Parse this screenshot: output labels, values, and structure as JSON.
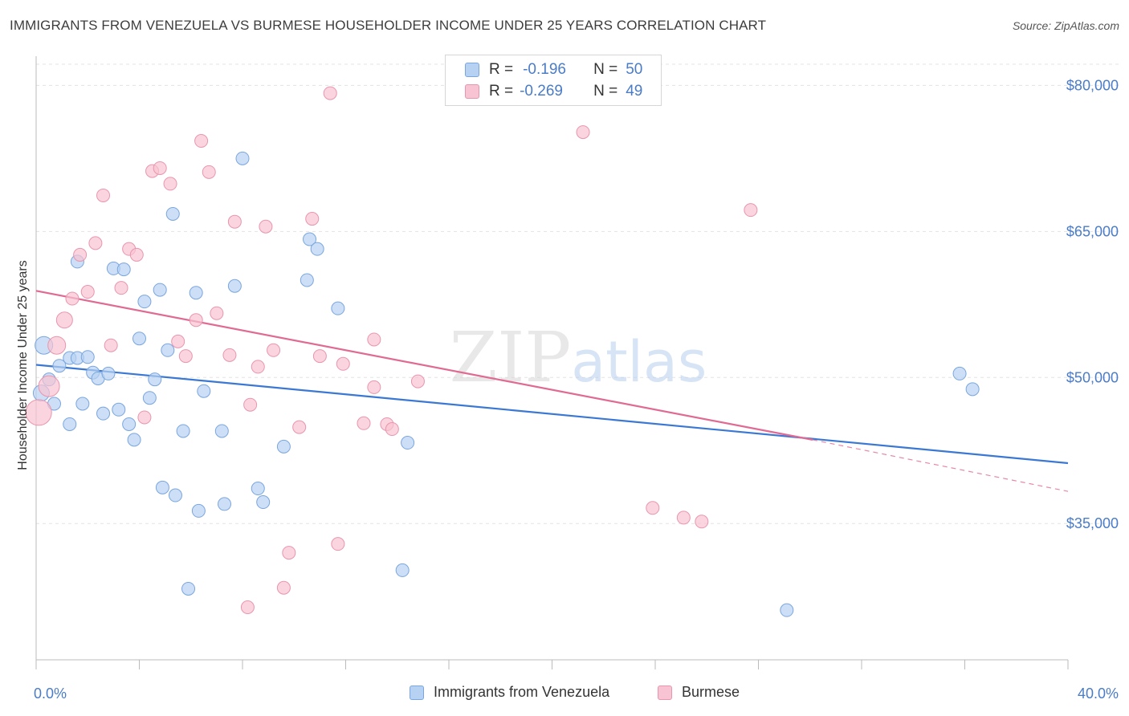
{
  "header": {
    "title": "IMMIGRANTS FROM VENEZUELA VS BURMESE HOUSEHOLDER INCOME UNDER 25 YEARS CORRELATION CHART",
    "source": "Source: ZipAtlas.com"
  },
  "legend": {
    "rows": [
      {
        "r_label": "R =",
        "r_value": "-0.196",
        "n_label": "N =",
        "n_value": "50"
      },
      {
        "r_label": "R =",
        "r_value": "-0.269",
        "n_label": "N =",
        "n_value": "49"
      }
    ]
  },
  "bottom_legend": {
    "series1": "Immigrants from Venezuela",
    "series2": "Burmese"
  },
  "colors": {
    "blue_fill": "#b7d1f2",
    "blue_stroke": "#7aa6de",
    "blue_line": "#3a78d4",
    "pink_fill": "#f8c3d2",
    "pink_stroke": "#e995ae",
    "pink_line": "#e06a93",
    "tick": "#4a7cc7"
  },
  "chart_data": {
    "type": "scatter",
    "title": "IMMIGRANTS FROM VENEZUELA VS BURMESE HOUSEHOLDER INCOME UNDER 25 YEARS CORRELATION CHART",
    "xlabel": "",
    "ylabel": "Householder Income Under 25 years",
    "xlim": [
      0,
      40
    ],
    "ylim": [
      21000,
      83000
    ],
    "x_tick_labels": [
      "0.0%",
      "40.0%"
    ],
    "y_ticks": [
      35000,
      50000,
      65000,
      80000
    ],
    "y_tick_labels": [
      "$35,000",
      "$50,000",
      "$65,000",
      "$80,000"
    ],
    "grid": true,
    "watermark": "ZIPatlas",
    "series": [
      {
        "name": "Immigrants from Venezuela",
        "r": -0.196,
        "n": 50,
        "trend": {
          "x0": 0,
          "y0": 51300,
          "x1": 40,
          "y1": 41200
        },
        "points": [
          [
            0.3,
            53300
          ],
          [
            0.5,
            49800
          ],
          [
            0.7,
            47300
          ],
          [
            0.9,
            51200
          ],
          [
            1.3,
            52000
          ],
          [
            1.3,
            45200
          ],
          [
            1.6,
            52000
          ],
          [
            1.6,
            61900
          ],
          [
            1.8,
            47300
          ],
          [
            2.0,
            52100
          ],
          [
            2.2,
            50500
          ],
          [
            2.4,
            49900
          ],
          [
            2.6,
            46300
          ],
          [
            2.8,
            50400
          ],
          [
            3.0,
            61200
          ],
          [
            3.2,
            46700
          ],
          [
            3.4,
            61100
          ],
          [
            3.6,
            45200
          ],
          [
            3.8,
            43600
          ],
          [
            4.0,
            54000
          ],
          [
            4.2,
            57800
          ],
          [
            4.4,
            47900
          ],
          [
            4.6,
            49800
          ],
          [
            4.8,
            59000
          ],
          [
            4.9,
            38700
          ],
          [
            5.1,
            52800
          ],
          [
            5.3,
            66800
          ],
          [
            5.4,
            37900
          ],
          [
            5.7,
            44500
          ],
          [
            5.9,
            28300
          ],
          [
            6.2,
            58700
          ],
          [
            6.3,
            36300
          ],
          [
            6.5,
            48600
          ],
          [
            7.2,
            44500
          ],
          [
            7.3,
            37000
          ],
          [
            7.7,
            59400
          ],
          [
            8.0,
            72500
          ],
          [
            8.6,
            38600
          ],
          [
            8.8,
            37200
          ],
          [
            9.6,
            42900
          ],
          [
            10.5,
            60000
          ],
          [
            10.6,
            64200
          ],
          [
            10.9,
            63200
          ],
          [
            11.7,
            57100
          ],
          [
            14.2,
            30200
          ],
          [
            14.4,
            43300
          ],
          [
            29.1,
            26100
          ],
          [
            35.8,
            50400
          ],
          [
            36.3,
            48800
          ],
          [
            0.2,
            48400
          ]
        ]
      },
      {
        "name": "Burmese",
        "r": -0.269,
        "n": 49,
        "trend": {
          "x0": 0,
          "y0": 58900,
          "x1": 30.1,
          "y1": 43600,
          "dash_x1": 40,
          "dash_y1": 38300
        },
        "points": [
          [
            0.1,
            46400
          ],
          [
            0.5,
            49100
          ],
          [
            0.8,
            53300
          ],
          [
            1.1,
            55900
          ],
          [
            1.4,
            58100
          ],
          [
            1.7,
            62600
          ],
          [
            2.0,
            58800
          ],
          [
            2.3,
            63800
          ],
          [
            2.6,
            68700
          ],
          [
            2.9,
            53300
          ],
          [
            3.3,
            59200
          ],
          [
            3.6,
            63200
          ],
          [
            3.9,
            62600
          ],
          [
            4.2,
            45900
          ],
          [
            4.5,
            71200
          ],
          [
            4.8,
            71500
          ],
          [
            5.2,
            69900
          ],
          [
            5.5,
            53700
          ],
          [
            5.8,
            52200
          ],
          [
            6.2,
            55900
          ],
          [
            6.4,
            74300
          ],
          [
            6.7,
            71100
          ],
          [
            7.0,
            56600
          ],
          [
            7.5,
            52300
          ],
          [
            7.7,
            66000
          ],
          [
            8.2,
            26400
          ],
          [
            8.3,
            47200
          ],
          [
            8.6,
            51100
          ],
          [
            8.9,
            65500
          ],
          [
            9.2,
            52800
          ],
          [
            9.6,
            28400
          ],
          [
            9.8,
            32000
          ],
          [
            10.2,
            44900
          ],
          [
            10.7,
            66300
          ],
          [
            11.0,
            52200
          ],
          [
            11.4,
            79200
          ],
          [
            11.7,
            32900
          ],
          [
            11.9,
            51400
          ],
          [
            12.7,
            45300
          ],
          [
            13.1,
            49000
          ],
          [
            13.1,
            53900
          ],
          [
            13.6,
            45200
          ],
          [
            13.8,
            44700
          ],
          [
            14.8,
            49600
          ],
          [
            21.2,
            75200
          ],
          [
            23.9,
            36600
          ],
          [
            25.1,
            35600
          ],
          [
            25.8,
            35200
          ],
          [
            27.7,
            67200
          ]
        ]
      }
    ]
  }
}
